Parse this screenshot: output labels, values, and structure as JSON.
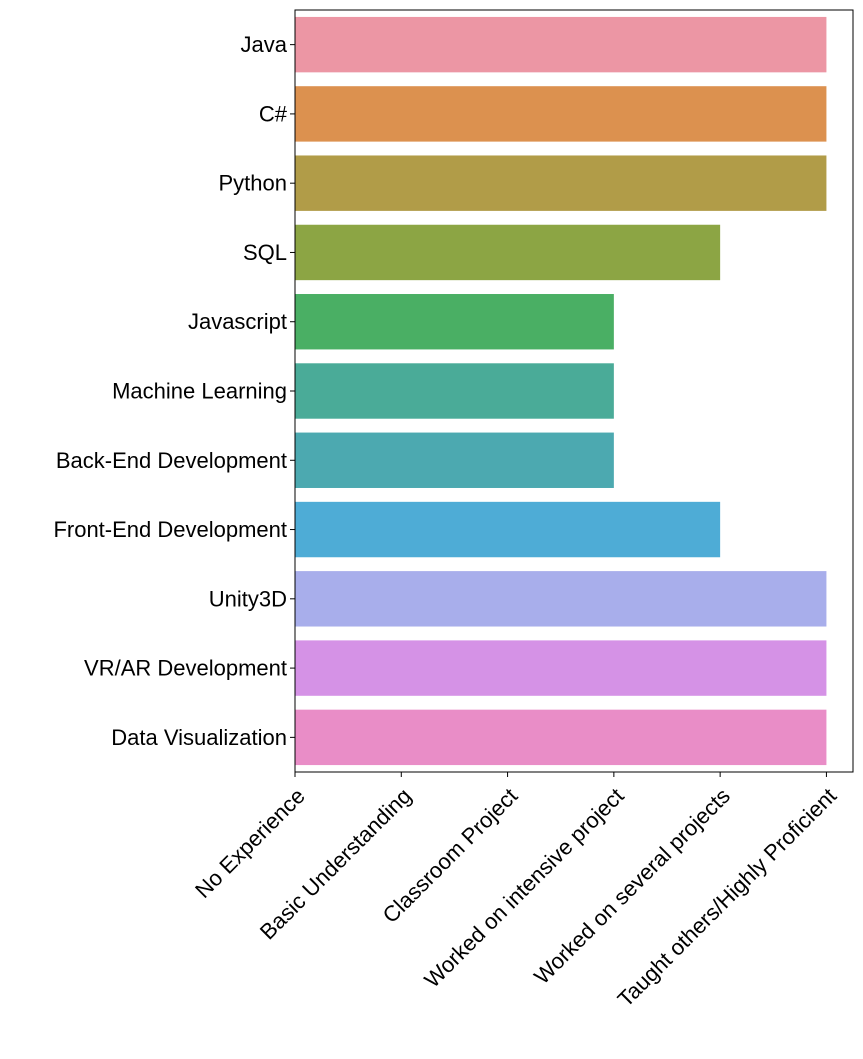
{
  "chart_data": {
    "type": "bar",
    "orientation": "horizontal",
    "categories": [
      "Java",
      "C#",
      "Python",
      "SQL",
      "Javascript",
      "Machine Learning",
      "Back-End Development",
      "Front-End Development",
      "Unity3D",
      "VR/AR Development",
      "Data Visualization"
    ],
    "values": [
      5,
      5,
      5,
      4,
      3,
      3,
      3,
      4,
      5,
      5,
      5
    ],
    "colors": [
      "#EC96A4",
      "#DC914F",
      "#B19C48",
      "#8CA544",
      "#4AAF64",
      "#4AAB98",
      "#4CA9B0",
      "#4EACD6",
      "#A8AEEB",
      "#D592E6",
      "#E98DC7"
    ],
    "x_tick_labels": [
      "No Experience",
      "Basic Understanding",
      "Classroom Project",
      "Worked on intensive project",
      "Worked on several projects",
      "Taught others/Highly Proficient"
    ],
    "xlim": [
      0,
      5.25
    ],
    "title": "",
    "xlabel": "",
    "ylabel": "",
    "grid": false,
    "legend": false
  }
}
